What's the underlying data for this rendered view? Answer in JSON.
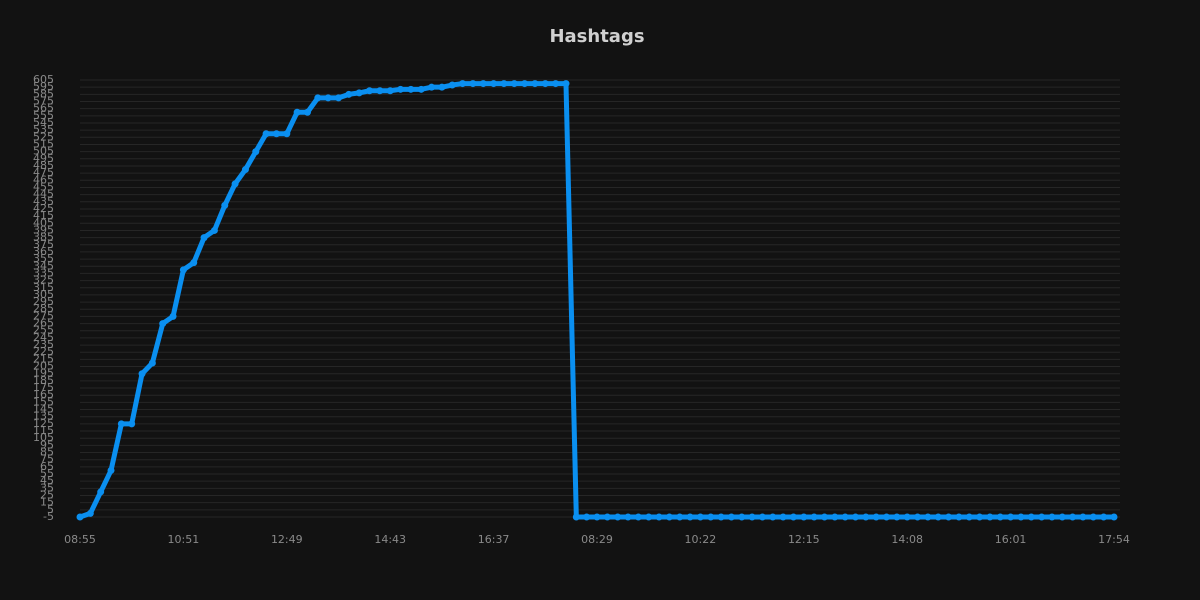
{
  "chart_data": {
    "type": "line",
    "title": "Hashtags",
    "categories": [
      "08:55",
      null,
      null,
      null,
      null,
      null,
      null,
      null,
      null,
      null,
      "10:51",
      null,
      null,
      null,
      null,
      null,
      null,
      null,
      null,
      null,
      "12:49",
      null,
      null,
      null,
      null,
      null,
      null,
      null,
      null,
      null,
      "14:43",
      null,
      null,
      null,
      null,
      null,
      null,
      null,
      null,
      null,
      "16:37",
      null,
      null,
      null,
      null,
      null,
      null,
      null,
      null,
      null,
      "08:29",
      null,
      null,
      null,
      null,
      null,
      null,
      null,
      null,
      null,
      "10:22",
      null,
      null,
      null,
      null,
      null,
      null,
      null,
      null,
      null,
      "12:15",
      null,
      null,
      null,
      null,
      null,
      null,
      null,
      null,
      null,
      "14:08",
      null,
      null,
      null,
      null,
      null,
      null,
      null,
      null,
      null,
      "16:01",
      null,
      null,
      null,
      null,
      null,
      null,
      null,
      null,
      null,
      "17:54"
    ],
    "series": [
      {
        "name": "Hashtags",
        "color": "#0a8ff0",
        "values": [
          -5,
          0,
          30,
          60,
          125,
          125,
          195,
          210,
          265,
          275,
          340,
          350,
          385,
          395,
          430,
          460,
          480,
          505,
          530,
          530,
          530,
          560,
          560,
          580,
          580,
          580,
          585,
          587,
          590,
          590,
          590,
          592,
          592,
          592,
          595,
          595,
          598,
          600,
          600,
          600,
          600,
          600,
          600,
          600,
          600,
          600,
          600,
          600,
          -5,
          -5,
          -5,
          -5,
          -5,
          -5,
          -5,
          -5,
          -5,
          -5,
          -5,
          -5,
          -5,
          -5,
          -5,
          -5,
          -5,
          -5,
          -5,
          -5,
          -5,
          -5,
          -5,
          -5,
          -5,
          -5,
          -5,
          -5,
          -5,
          -5,
          -5,
          -5,
          -5,
          -5,
          -5,
          -5,
          -5,
          -5,
          -5,
          -5,
          -5,
          -5,
          -5,
          -5,
          -5,
          -5,
          -5,
          -5,
          -5,
          -5,
          -5,
          -5,
          -5
        ]
      }
    ],
    "ylim": [
      -5,
      605
    ],
    "yticks": [
      -5,
      5,
      15,
      25,
      35,
      45,
      55,
      65,
      75,
      85,
      95,
      105,
      115,
      125,
      135,
      145,
      155,
      165,
      175,
      185,
      195,
      205,
      215,
      225,
      235,
      245,
      255,
      265,
      275,
      285,
      295,
      305,
      315,
      325,
      335,
      345,
      355,
      365,
      375,
      385,
      395,
      405,
      415,
      425,
      435,
      445,
      455,
      465,
      475,
      485,
      495,
      505,
      515,
      525,
      535,
      545,
      555,
      565,
      575,
      585,
      595,
      605
    ],
    "grid": true
  }
}
